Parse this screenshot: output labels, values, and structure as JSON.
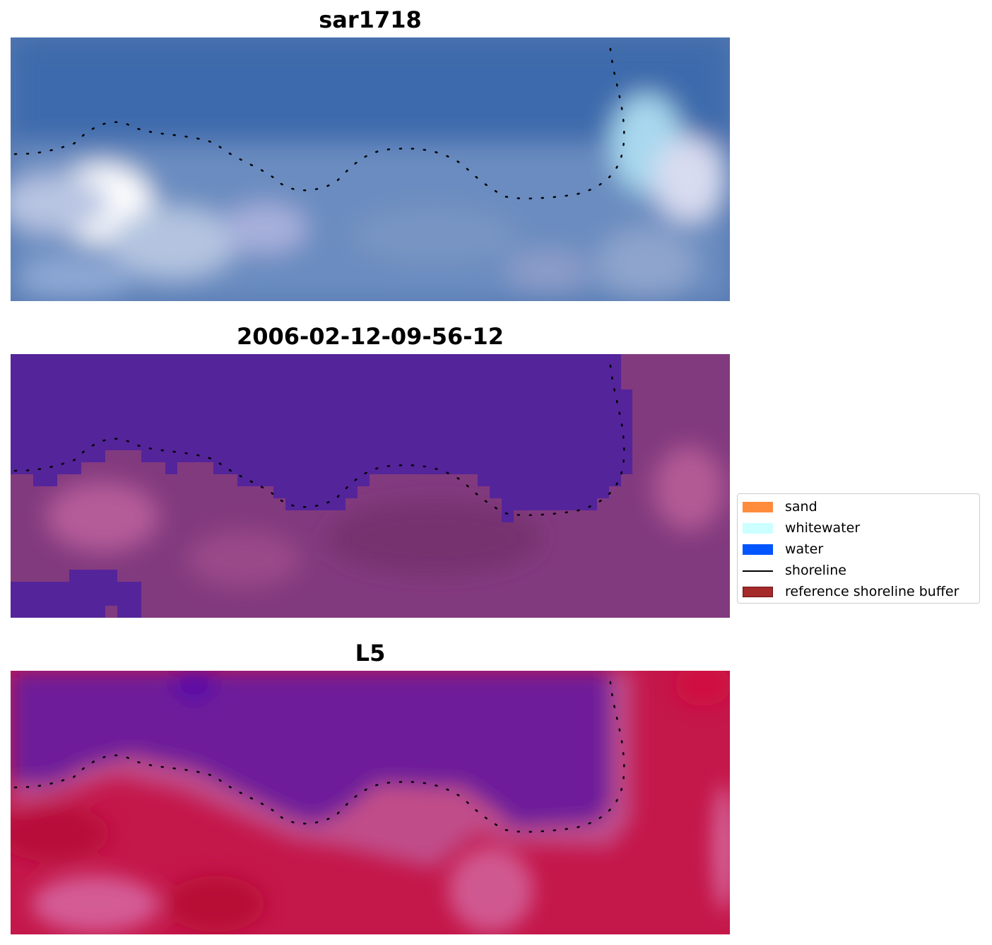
{
  "panels": [
    {
      "title": "sar1718",
      "image": "rgb-satellite-view"
    },
    {
      "title": "2006-02-12-09-56-12",
      "image": "classified-overlay"
    },
    {
      "title": "L5",
      "image": "index-heatmap"
    }
  ],
  "legend": {
    "items": [
      {
        "label": "sand",
        "color": "#ff8c3c"
      },
      {
        "label": "whitewater",
        "color": "#ccffff"
      },
      {
        "label": "water",
        "color": "#0055ff"
      },
      {
        "label": "shoreline",
        "color": "#000000"
      },
      {
        "label": "reference shoreline buffer",
        "color": "#a52a2a"
      }
    ]
  },
  "colors": {
    "water_class": "#54249a",
    "rgb_sea": "#3d6eae",
    "index_low": "#6e1c9a",
    "index_high": "#c4174a",
    "shoreline_dots": "#000000"
  }
}
